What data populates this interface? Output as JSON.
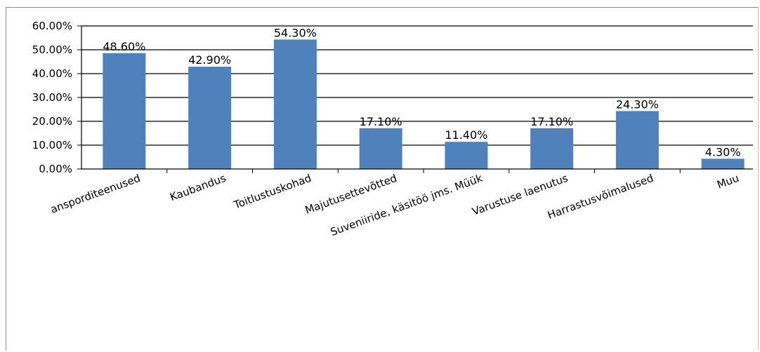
{
  "chart_data": {
    "type": "bar",
    "title": "",
    "xlabel": "",
    "ylabel": "",
    "categories": [
      "ansporditeenused",
      "Kaubandus",
      "Toitlustuskohad",
      "Majutusettevõtted",
      "Suveniiride, käsitöö jms. Müük",
      "Varustuse laenutus",
      "Harrastusvõimalused",
      "Muu"
    ],
    "values": [
      48.6,
      42.9,
      54.3,
      17.1,
      11.4,
      17.1,
      24.3,
      4.3
    ],
    "value_labels": [
      "48.60%",
      "42.90%",
      "54.30%",
      "17.10%",
      "11.40%",
      "17.10%",
      "24.30%",
      "4.30%"
    ],
    "y_ticks": [
      "0.00%",
      "10.00%",
      "20.00%",
      "30.00%",
      "40.00%",
      "50.00%",
      "60.00%"
    ],
    "ylim": [
      0,
      60
    ],
    "grid": true,
    "legend": "none",
    "bar_color": "#4f81bd",
    "gridline_color": "#000000"
  }
}
